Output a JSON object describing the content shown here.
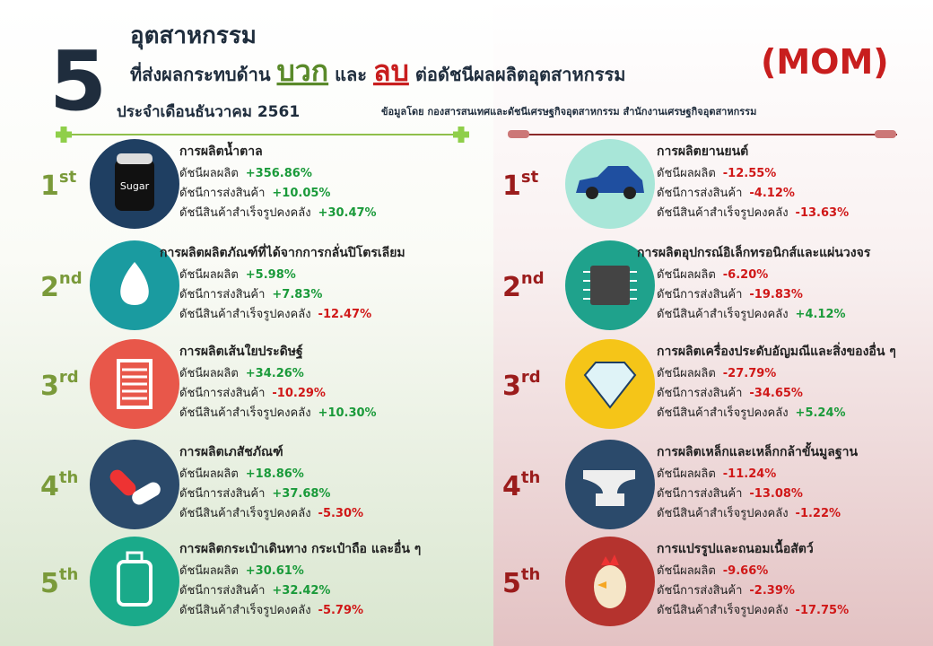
{
  "header": {
    "number": "5",
    "line1": "อุตสาหกรรม",
    "line2": [
      "ที่ส่งผลกระทบด้าน",
      "บวก",
      "และ",
      "ลบ",
      "ต่อดัชนีผลผลิตอุตสาหกรรม"
    ],
    "badge": "(MOM)",
    "period": "ประจำเดือนธันวาคม 2561",
    "source": "ข้อมูลโดย กองสารสนเทศและดัชนีเศรษฐกิจอุตสาหกรรม สำนักงานเศรษฐกิจอุตสาหกรรม"
  },
  "positive": [
    {
      "rank": {
        "number": "1",
        "suffix": "st"
      },
      "title": "การผลิตน้ำตาล",
      "icon_text": "Sugar",
      "metrics": [
        {
          "label": "ดัชนีผลผลิต",
          "value": "+356.86%"
        },
        {
          "label": "ดัชนีการส่งสินค้า",
          "value": "+10.05%"
        },
        {
          "label": "ดัชนีสินค้าสำเร็จรูปคงคลัง",
          "value": "+30.47%"
        }
      ]
    },
    {
      "rank": {
        "number": "2",
        "suffix": "nd"
      },
      "title": "การผลิตผลิตภัณฑ์ที่ได้จากการกลั่นปิโตรเลียม",
      "metrics": [
        {
          "label": "ดัชนีผลผลิต",
          "value": "+5.98%"
        },
        {
          "label": "ดัชนีการส่งสินค้า",
          "value": "+7.83%"
        },
        {
          "label": "ดัชนีสินค้าสำเร็จรูปคงคลัง",
          "value": "-12.47%"
        }
      ]
    },
    {
      "rank": {
        "number": "3",
        "suffix": "rd"
      },
      "title": "การผลิตเส้นใยประดิษฐ์",
      "metrics": [
        {
          "label": "ดัชนีผลผลิต",
          "value": "+34.26%"
        },
        {
          "label": "ดัชนีการส่งสินค้า",
          "value": "-10.29%"
        },
        {
          "label": "ดัชนีสินค้าสำเร็จรูปคงคลัง",
          "value": "+10.30%"
        }
      ]
    },
    {
      "rank": {
        "number": "4",
        "suffix": "th"
      },
      "title": "การผลิตเภสัชภัณฑ์",
      "metrics": [
        {
          "label": "ดัชนีผลผลิต",
          "value": "+18.86%"
        },
        {
          "label": "ดัชนีการส่งสินค้า",
          "value": "+37.68%"
        },
        {
          "label": "ดัชนีสินค้าสำเร็จรูปคงคลัง",
          "value": "-5.30%"
        }
      ]
    },
    {
      "rank": {
        "number": "5",
        "suffix": "th"
      },
      "title": "การผลิตกระเป๋าเดินทาง กระเป๋าถือ และอื่น ๆ",
      "metrics": [
        {
          "label": "ดัชนีผลผลิต",
          "value": "+30.61%"
        },
        {
          "label": "ดัชนีการส่งสินค้า",
          "value": "+32.42%"
        },
        {
          "label": "ดัชนีสินค้าสำเร็จรูปคงคลัง",
          "value": "-5.79%"
        }
      ]
    }
  ],
  "negative": [
    {
      "rank": {
        "number": "1",
        "suffix": "st"
      },
      "title": "การผลิตยานยนต์",
      "metrics": [
        {
          "label": "ดัชนีผลผลิต",
          "value": "-12.55%"
        },
        {
          "label": "ดัชนีการส่งสินค้า",
          "value": "-4.12%"
        },
        {
          "label": "ดัชนีสินค้าสำเร็จรูปคงคลัง",
          "value": "-13.63%"
        }
      ]
    },
    {
      "rank": {
        "number": "2",
        "suffix": "nd"
      },
      "title": "การผลิตอุปกรณ์อิเล็กทรอนิกส์และแผ่นวงจร",
      "metrics": [
        {
          "label": "ดัชนีผลผลิต",
          "value": "-6.20%"
        },
        {
          "label": "ดัชนีการส่งสินค้า",
          "value": "-19.83%"
        },
        {
          "label": "ดัชนีสินค้าสำเร็จรูปคงคลัง",
          "value": "+4.12%"
        }
      ]
    },
    {
      "rank": {
        "number": "3",
        "suffix": "rd"
      },
      "title": "การผลิตเครื่องประดับอัญมณีและสิ่งของอื่น ๆ",
      "metrics": [
        {
          "label": "ดัชนีผลผลิต",
          "value": "-27.79%"
        },
        {
          "label": "ดัชนีการส่งสินค้า",
          "value": "-34.65%"
        },
        {
          "label": "ดัชนีสินค้าสำเร็จรูปคงคลัง",
          "value": "+5.24%"
        }
      ]
    },
    {
      "rank": {
        "number": "4",
        "suffix": "th"
      },
      "title": "การผลิตเหล็กและเหล็กกล้าขั้นมูลฐาน",
      "metrics": [
        {
          "label": "ดัชนีผลผลิต",
          "value": "-11.24%"
        },
        {
          "label": "ดัชนีการส่งสินค้า",
          "value": "-13.08%"
        },
        {
          "label": "ดัชนีสินค้าสำเร็จรูปคงคลัง",
          "value": "-1.22%"
        }
      ]
    },
    {
      "rank": {
        "number": "5",
        "suffix": "th"
      },
      "title": "การแปรรูปและถนอมเนื้อสัตว์",
      "metrics": [
        {
          "label": "ดัชนีผลผลิต",
          "value": "-9.66%"
        },
        {
          "label": "ดัชนีการส่งสินค้า",
          "value": "-2.39%"
        },
        {
          "label": "ดัชนีสินค้าสำเร็จรูปคงคลัง",
          "value": "-17.75%"
        }
      ]
    }
  ]
}
